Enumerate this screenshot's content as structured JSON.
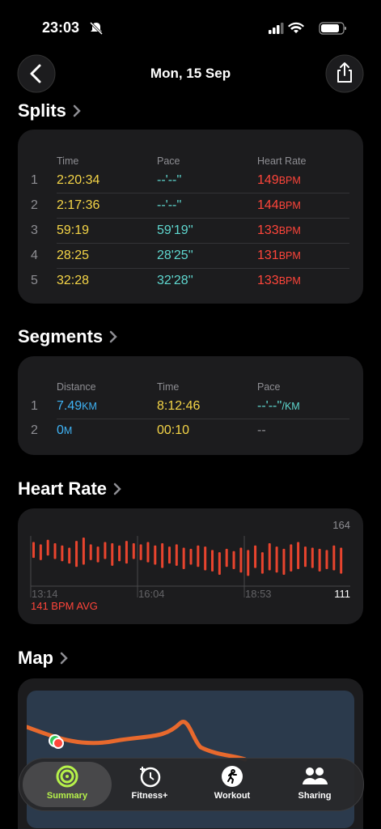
{
  "status_bar": {
    "time": "23:03"
  },
  "header": {
    "date": "Mon, 15 Sep"
  },
  "splits": {
    "title": "Splits",
    "columns": [
      "Time",
      "Pace",
      "Heart Rate"
    ],
    "rows": [
      {
        "index": "1",
        "time": "2:20:34",
        "pace": "--'--''",
        "heart_rate": "149",
        "unit": "BPM"
      },
      {
        "index": "2",
        "time": "2:17:36",
        "pace": "--'--''",
        "heart_rate": "144",
        "unit": "BPM"
      },
      {
        "index": "3",
        "time": "59:19",
        "pace": "59'19''",
        "heart_rate": "133",
        "unit": "BPM"
      },
      {
        "index": "4",
        "time": "28:25",
        "pace": "28'25''",
        "heart_rate": "131",
        "unit": "BPM"
      },
      {
        "index": "5",
        "time": "32:28",
        "pace": "32'28''",
        "heart_rate": "133",
        "unit": "BPM"
      }
    ]
  },
  "segments": {
    "title": "Segments",
    "columns": [
      "Distance",
      "Time",
      "Pace"
    ],
    "rows": [
      {
        "index": "1",
        "distance": "7.49",
        "distance_unit": "KM",
        "time": "8:12:46",
        "pace": "--'--''",
        "pace_unit": "/KM"
      },
      {
        "index": "2",
        "distance": "0",
        "distance_unit": "M",
        "time": "00:10",
        "pace": "--"
      }
    ]
  },
  "heart_rate": {
    "title": "Heart Rate",
    "average": "141 BPM AVG",
    "x_labels": [
      "13:14",
      "16:04",
      "18:53"
    ],
    "ylim": [
      111,
      164
    ],
    "high": [
      150,
      148,
      152,
      149,
      147,
      145,
      151,
      154,
      148,
      146,
      150,
      149,
      147,
      151,
      149,
      148,
      150,
      147,
      149,
      146,
      148,
      145,
      144,
      147,
      146,
      143,
      141,
      144,
      142,
      145,
      143,
      147,
      141,
      149,
      146,
      144,
      148,
      150,
      146,
      145,
      144,
      143,
      147,
      145
    ],
    "low": [
      136,
      134,
      138,
      135,
      133,
      131,
      128,
      130,
      134,
      132,
      135,
      129,
      133,
      131,
      135,
      134,
      132,
      130,
      127,
      131,
      129,
      126,
      130,
      128,
      125,
      124,
      121,
      128,
      126,
      123,
      120,
      127,
      122,
      125,
      123,
      121,
      124,
      126,
      128,
      127,
      124,
      126,
      125,
      122
    ]
  },
  "map": {
    "title": "Map"
  },
  "tab_bar": {
    "tabs": [
      "Summary",
      "Fitness+",
      "Workout",
      "Sharing"
    ]
  }
}
